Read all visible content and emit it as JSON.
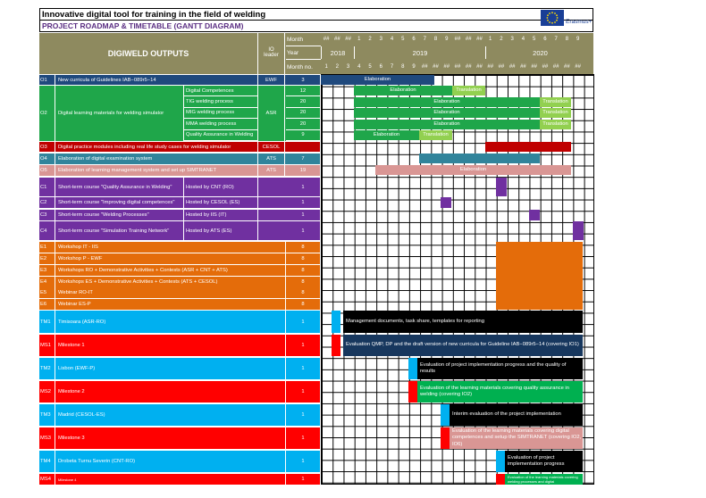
{
  "title": "Innovative digital tool for training in the field of welding",
  "subtitle": "PROJECT ROADMAP & TIMETABLE (GANTT DIAGRAM)",
  "logo": {
    "text": "Erasmus+"
  },
  "header": {
    "outputs": "DIGIWELD OUTPUTS",
    "io_leader": "IO\nleader",
    "month_label": "Month",
    "year_label": "Year",
    "month_no_label": "Month no.",
    "months": [
      "##",
      "##",
      "##",
      "1",
      "2",
      "3",
      "4",
      "5",
      "6",
      "7",
      "8",
      "9",
      "##",
      "##",
      "##",
      "1",
      "2",
      "3",
      "4",
      "5",
      "6",
      "7",
      "8",
      "9"
    ],
    "years": [
      "2018",
      "2019",
      "2020"
    ],
    "month_numbers": [
      "1",
      "2",
      "3",
      "4",
      "5",
      "6",
      "7",
      "8",
      "9",
      "##",
      "##",
      "##",
      "##",
      "##",
      "##",
      "##",
      "##",
      "##",
      "##",
      "##",
      "##",
      "##",
      "##",
      "##"
    ]
  },
  "rows": [
    {
      "id": "O1",
      "label": "New curricula of Guidelines IAB−089r5−14",
      "io": "EWF",
      "no": "3",
      "color": "#1f497d"
    },
    {
      "id": "O2",
      "label": "Digital learning materials for welding simulator",
      "io": "ASR",
      "color": "#1fa64a",
      "subs": [
        {
          "label": "Digital Competences",
          "no": "12"
        },
        {
          "label": "TIG welding process",
          "no": "20"
        },
        {
          "label": "MIG welding process",
          "no": "20"
        },
        {
          "label": "MMA welding process",
          "no": "20"
        },
        {
          "label": "Quality Assurance in Welding",
          "no": "9"
        }
      ]
    },
    {
      "id": "O3",
      "label": "Digital practice modules including real life study cases for welding simulator",
      "io": "CESOL",
      "no": "",
      "color": "#c00000"
    },
    {
      "id": "O4",
      "label": "Elaboration of digital examination system",
      "io": "ATS",
      "no": "7",
      "color": "#31849b"
    },
    {
      "id": "O5",
      "label": "Elaboration of learning management system and set up SIMTRANET",
      "io": "ATS",
      "no": "19",
      "color": "#d99694"
    },
    {
      "id": "C1",
      "label": "Short-term course \"Quality Assurance in Welding\"",
      "host": "Hosted by CNT (RO)",
      "no": "1",
      "color": "#7030a0"
    },
    {
      "id": "C2",
      "label": "Short-term course \"Improving digital competences\"",
      "host": "Hosted by CESOL (ES)",
      "no": "1",
      "color": "#7030a0"
    },
    {
      "id": "C3",
      "label": "Short-term course \"Welding Processes\"",
      "host": "Hosted by IIS (IT)",
      "no": "1",
      "color": "#7030a0"
    },
    {
      "id": "C4",
      "label": "Short-term course \"Simulation Training Network\"",
      "host": "Hosted by ATS (ES)",
      "no": "1",
      "color": "#7030a0"
    },
    {
      "id": "E1",
      "label": "Workshop IT - IIS",
      "no": "8",
      "color": "#e46c0a"
    },
    {
      "id": "E2",
      "label": "Workshop P - EWF",
      "no": "8",
      "color": "#e46c0a"
    },
    {
      "id": "E3",
      "label": "Workshops RO + Demonstrative Activities + Contests (ASR + CNT + ATS)",
      "no": "8",
      "color": "#e46c0a"
    },
    {
      "id": "E4",
      "label": "Workshops ES + Demonstrative Activities + Contests (ATS + CESOL)",
      "no": "8",
      "color": "#e46c0a"
    },
    {
      "id": "E5",
      "label": "Webinar RO-IT",
      "no": "8",
      "color": "#e46c0a"
    },
    {
      "id": "E6",
      "label": "Webinar ES-P",
      "no": "8",
      "color": "#e46c0a"
    },
    {
      "id": "TM1",
      "label": "Timisoara (ASR-RO)",
      "no": "1",
      "color": "#00b0f0"
    },
    {
      "id": "MS1",
      "label": "Milestone 1",
      "no": "1",
      "color": "#ff0000"
    },
    {
      "id": "TM2",
      "label": "Lisbon (EWF-P)",
      "no": "1",
      "color": "#00b0f0"
    },
    {
      "id": "MS2",
      "label": "Milestone 2",
      "no": "1",
      "color": "#ff0000"
    },
    {
      "id": "TM3",
      "label": "Madrid (CESOL-ES)",
      "no": "1",
      "color": "#00b0f0"
    },
    {
      "id": "MS3",
      "label": "Milestone 3",
      "no": "1",
      "color": "#ff0000"
    },
    {
      "id": "TM4",
      "label": "Drobeta Turnu Severin (CNT-RO)",
      "no": "1",
      "color": "#00b0f0"
    },
    {
      "id": "MS4",
      "label": "Milestone 4",
      "no": "1",
      "color": "#ff0000"
    }
  ],
  "bars": {
    "o1": "Elaboration",
    "dc_elab": "Elaboration",
    "dc_trans": "Translation",
    "tig_elab": "Elaboration",
    "tig_trans": "Translation",
    "mig_elab": "Elaboration",
    "mig_trans": "Translation",
    "mma_elab": "Elaboration",
    "mma_trans": "Translation",
    "qa_elab": "Elaboration",
    "qa_trans": "Translation",
    "o5": "Elaboration",
    "tm1": "Management documents, task share, templates for reporting",
    "ms1": "Evaluation QMP, DP and the draft version of new curricula for Guideline IAB−089r5−14 (covering IO1)",
    "tm2": "Evaluation of project implementation progress and the quality of results",
    "ms2": "Evaluation of the learning materials covering quality assurance in welding (covering IO2)",
    "tm3": "Interim evaluation of the project implementation",
    "ms3": "Evaluation of the learning materials covering digital competences and setup the SIMTRANET (covering IO2, IO6)",
    "tm4": "Evaluation of project implementation progress",
    "ms4": "Evaluation of the learning materials covering welding processes and digital"
  }
}
